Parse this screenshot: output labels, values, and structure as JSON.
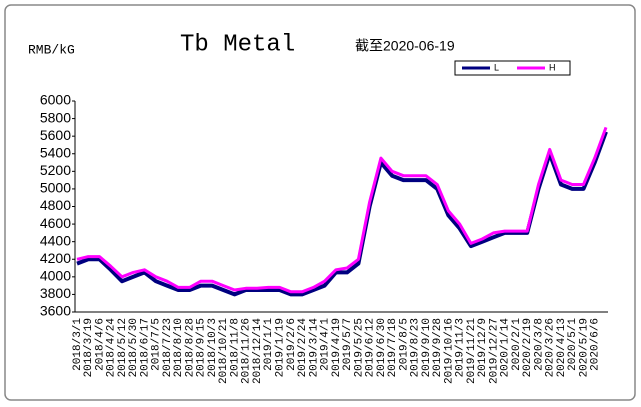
{
  "chart_data": {
    "type": "line",
    "title": "Tb Metal",
    "subtitle": "截至2020-06-19",
    "y_label": "RMB/kG",
    "categories": [
      "2018/3/1",
      "2018/3/19",
      "2018/4/6",
      "2018/4/24",
      "2018/5/12",
      "2018/5/30",
      "2018/6/17",
      "2018/7/5",
      "2018/7/23",
      "2018/8/10",
      "2018/8/28",
      "2018/9/15",
      "2018/10/3",
      "2018/10/21",
      "2018/11/8",
      "2018/11/26",
      "2018/12/14",
      "2019/1/1",
      "2019/1/19",
      "2019/2/6",
      "2019/2/24",
      "2019/3/14",
      "2019/4/1",
      "2019/4/19",
      "2019/5/7",
      "2019/5/25",
      "2019/6/12",
      "2019/6/30",
      "2019/7/18",
      "2019/8/5",
      "2019/8/23",
      "2019/9/10",
      "2019/9/28",
      "2019/10/16",
      "2019/11/3",
      "2019/11/21",
      "2019/12/9",
      "2019/12/27",
      "2020/1/14",
      "2020/2/1",
      "2020/2/19",
      "2020/3/8",
      "2020/3/26",
      "2020/4/13",
      "2020/5/1",
      "2020/5/19",
      "2020/6/6",
      null
    ],
    "series": [
      {
        "name": "L",
        "color": "#000080",
        "values": [
          4150,
          4200,
          4200,
          4080,
          3950,
          4000,
          4050,
          3950,
          3900,
          3850,
          3850,
          3900,
          3900,
          3850,
          3800,
          3850,
          3850,
          3850,
          3850,
          3800,
          3800,
          3850,
          3900,
          4050,
          4050,
          4150,
          4800,
          5300,
          5150,
          5100,
          5100,
          5100,
          5000,
          4700,
          4550,
          4350,
          4400,
          4450,
          4500,
          4500,
          4500,
          5000,
          5400,
          5050,
          5000,
          5000,
          5300,
          5650
        ]
      },
      {
        "name": "H",
        "color": "#ff00ff",
        "values": [
          4200,
          4230,
          4230,
          4120,
          4000,
          4050,
          4080,
          4000,
          3950,
          3880,
          3880,
          3950,
          3950,
          3900,
          3850,
          3870,
          3870,
          3880,
          3880,
          3830,
          3830,
          3880,
          3950,
          4080,
          4100,
          4200,
          4850,
          5350,
          5200,
          5150,
          5150,
          5150,
          5050,
          4750,
          4600,
          4380,
          4430,
          4500,
          4520,
          4520,
          4520,
          5050,
          5450,
          5100,
          5050,
          5050,
          5350,
          5700
        ]
      }
    ],
    "ylim": [
      3600,
      6000
    ],
    "yticks": [
      3600,
      3800,
      4000,
      4200,
      4400,
      4600,
      4800,
      5000,
      5200,
      5400,
      5600,
      5800,
      6000
    ],
    "grid": false
  }
}
